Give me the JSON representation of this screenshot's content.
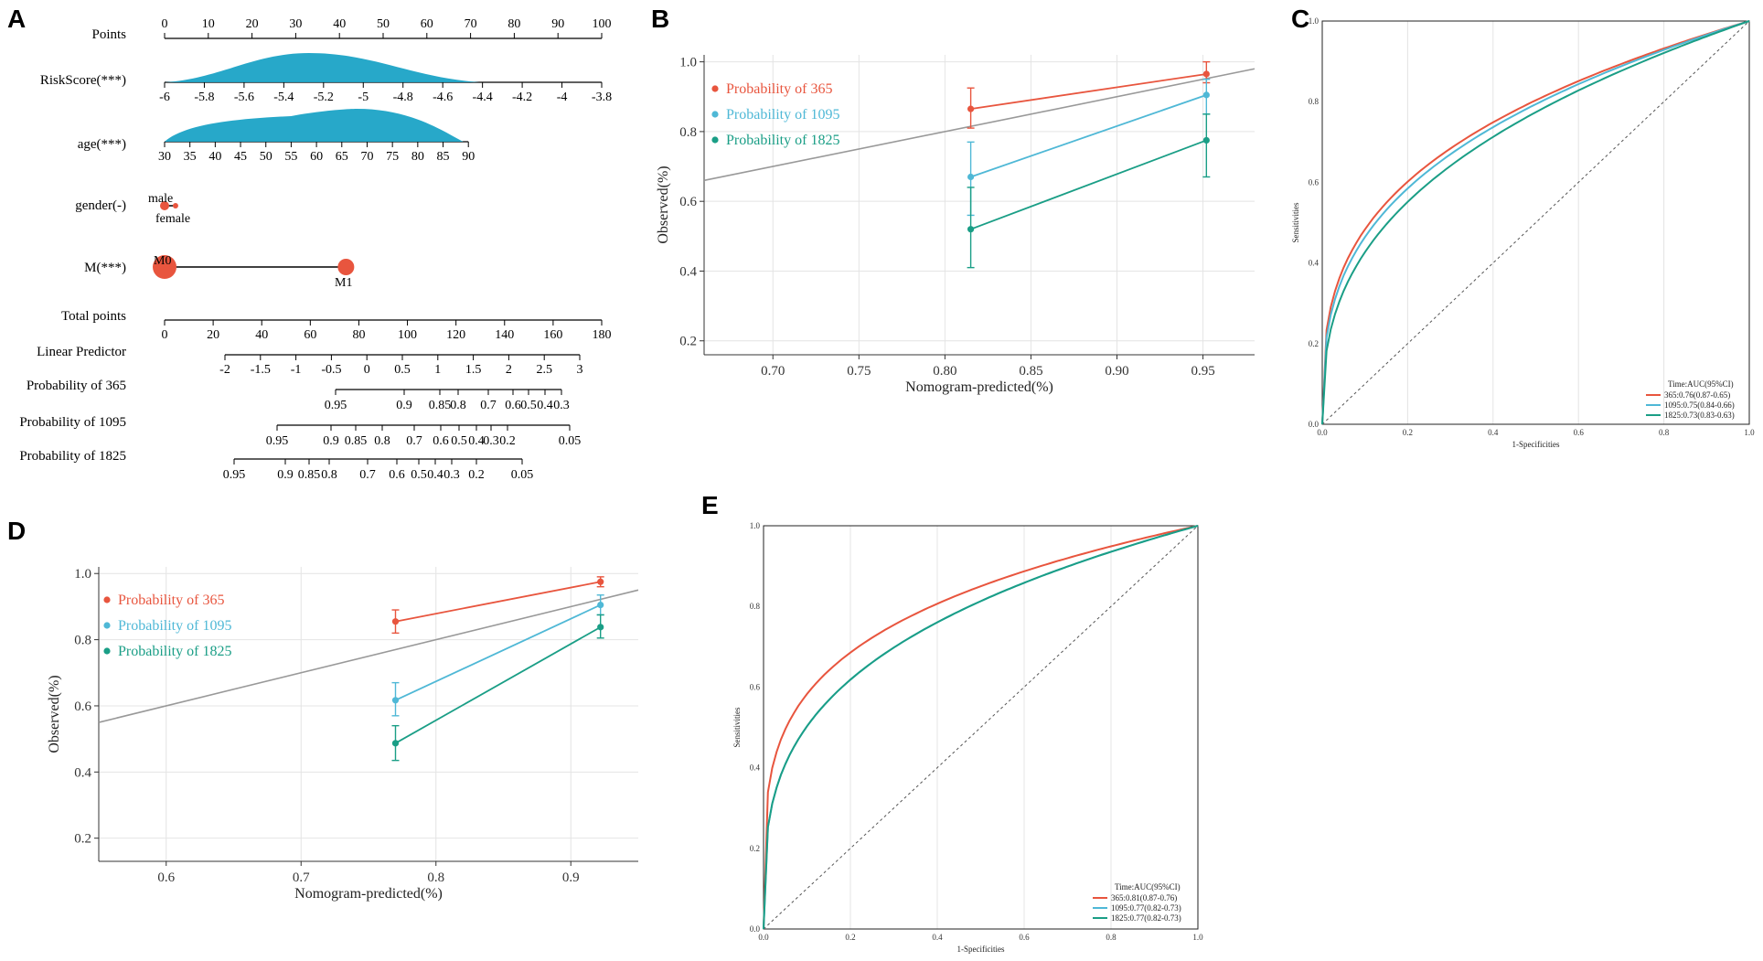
{
  "panels": {
    "A": "A",
    "B": "B",
    "C": "C",
    "D": "D",
    "E": "E"
  },
  "colors": {
    "c365": "#e8553e",
    "c1095": "#4fb8d6",
    "c1825": "#1a9e86",
    "diag": "#999999",
    "density": "#1ba3c6"
  },
  "chart_data": [
    {
      "panel": "A",
      "type": "nomogram",
      "rows": [
        {
          "label": "Points",
          "ticks": [
            0,
            10,
            20,
            30,
            40,
            50,
            60,
            70,
            80,
            90,
            100
          ],
          "labels": [
            "0",
            "10",
            "20",
            "30",
            "40",
            "50",
            "60",
            "70",
            "80",
            "90",
            "100"
          ]
        },
        {
          "label": "RiskScore(***)",
          "ticks": [
            -6,
            -5.8,
            -5.6,
            -5.4,
            -5.2,
            -5,
            -4.8,
            -4.6,
            -4.4,
            -4.2,
            -4,
            -3.8
          ],
          "labels": [
            "-6",
            "-5.8",
            "-5.6",
            "-5.4",
            "-5.2",
            "-5",
            "-4.8",
            "-4.6",
            "-4.4",
            "-4.2",
            "-4",
            "-3.8"
          ]
        },
        {
          "label": "age(***)",
          "ticks": [
            30,
            35,
            40,
            45,
            50,
            55,
            60,
            65,
            70,
            75,
            80,
            85,
            90
          ],
          "labels": [
            "30",
            "35",
            "40",
            "45",
            "50",
            "55",
            "60",
            "65",
            "70",
            "75",
            "80",
            "85",
            "90"
          ]
        },
        {
          "label": "gender(-)",
          "categories": [
            "male",
            "female"
          ]
        },
        {
          "label": "M(***)",
          "categories": [
            "M0",
            "M1"
          ]
        },
        {
          "label": "Total points",
          "ticks": [
            0,
            20,
            40,
            60,
            80,
            100,
            120,
            140,
            160,
            180
          ],
          "labels": [
            "0",
            "20",
            "40",
            "60",
            "80",
            "100",
            "120",
            "140",
            "160",
            "180"
          ]
        },
        {
          "label": "Linear Predictor",
          "ticks": [
            -2,
            -1.5,
            -1,
            -0.5,
            0,
            0.5,
            1,
            1.5,
            2,
            2.5,
            3
          ],
          "labels": [
            "-2",
            "-1.5",
            "-1",
            "-0.5",
            "0",
            "0.5",
            "1",
            "1.5",
            "2",
            "2.5",
            "3"
          ]
        },
        {
          "label": "Probability of 365",
          "ticks": [
            0.95,
            0.9,
            0.85,
            0.8,
            0.7,
            0.6,
            0.5,
            0.4,
            0.3
          ],
          "labels": [
            "0.95",
            "0.9",
            "0.85",
            "0.8",
            "0.7",
            "0.6",
            "0.5",
            "0.4",
            "0.3"
          ]
        },
        {
          "label": "Probability of 1095",
          "ticks": [
            0.95,
            0.9,
            0.85,
            0.8,
            0.7,
            0.6,
            0.5,
            0.4,
            0.3,
            0.2,
            0.05
          ],
          "labels": [
            "0.95",
            "0.9",
            "0.85",
            "0.8",
            "0.7",
            "0.6",
            "0.5",
            "0.4",
            "0.3",
            "0.2",
            "0.05"
          ]
        },
        {
          "label": "Probability of 1825",
          "ticks": [
            0.95,
            0.9,
            0.85,
            0.8,
            0.7,
            0.6,
            0.5,
            0.4,
            0.3,
            0.2,
            0.05
          ],
          "labels": [
            "0.95",
            "0.9",
            "0.85",
            "0.8",
            "0.7",
            "0.6",
            "0.5",
            "0.4",
            "0.3",
            "0.2",
            "0.05"
          ]
        }
      ]
    },
    {
      "panel": "B",
      "type": "calibration",
      "xlabel": "Nomogram-predicted(%)",
      "ylabel": "Observed(%)",
      "xlim": [
        0.66,
        0.98
      ],
      "ylim": [
        0.16,
        1.02
      ],
      "xticks": [
        0.7,
        0.75,
        0.8,
        0.85,
        0.9,
        0.95
      ],
      "xtick_labels": [
        "0.70",
        "0.75",
        "0.80",
        "0.85",
        "0.90",
        "0.95"
      ],
      "yticks": [
        0.2,
        0.4,
        0.6,
        0.8,
        1.0
      ],
      "ytick_labels": [
        "0.2",
        "0.4",
        "0.6",
        "0.8",
        "1.0"
      ],
      "series": [
        {
          "name": "Probability of 365",
          "x": [
            0.815,
            0.952
          ],
          "y": [
            0.865,
            0.965
          ],
          "lo": [
            0.81,
            0.94
          ],
          "hi": [
            0.925,
            1.0
          ]
        },
        {
          "name": "Probability of 1095",
          "x": [
            0.815,
            0.952
          ],
          "y": [
            0.67,
            0.905
          ],
          "lo": [
            0.56,
            0.85
          ],
          "hi": [
            0.77,
            0.95
          ]
        },
        {
          "name": "Probability of 1825",
          "x": [
            0.815,
            0.952
          ],
          "y": [
            0.52,
            0.775
          ],
          "lo": [
            0.41,
            0.67
          ],
          "hi": [
            0.64,
            0.85
          ]
        }
      ]
    },
    {
      "panel": "C",
      "type": "roc",
      "xlabel": "1-Specificities",
      "ylabel": "Sensitivities",
      "ticks": [
        "0.0",
        "0.2",
        "0.4",
        "0.6",
        "0.8",
        "1.0"
      ],
      "legend_title": "Time:AUC(95%CI)",
      "series": [
        {
          "name": "365:0.76(0.87-0.65)",
          "auc": 0.76
        },
        {
          "name": "1095:0.75(0.84-0.66)",
          "auc": 0.75
        },
        {
          "name": "1825:0.73(0.83-0.63)",
          "auc": 0.73
        }
      ]
    },
    {
      "panel": "D",
      "type": "calibration",
      "xlabel": "Nomogram-predicted(%)",
      "ylabel": "Observed(%)",
      "xlim": [
        0.55,
        0.95
      ],
      "ylim": [
        0.13,
        1.02
      ],
      "xticks": [
        0.6,
        0.7,
        0.8,
        0.9
      ],
      "xtick_labels": [
        "0.6",
        "0.7",
        "0.8",
        "0.9"
      ],
      "yticks": [
        0.2,
        0.4,
        0.6,
        0.8,
        1.0
      ],
      "ytick_labels": [
        "0.2",
        "0.4",
        "0.6",
        "0.8",
        "1.0"
      ],
      "series": [
        {
          "name": "Probability of 365",
          "x": [
            0.77,
            0.922
          ],
          "y": [
            0.855,
            0.975
          ],
          "lo": [
            0.82,
            0.96
          ],
          "hi": [
            0.89,
            0.99
          ]
        },
        {
          "name": "Probability of 1095",
          "x": [
            0.77,
            0.922
          ],
          "y": [
            0.617,
            0.905
          ],
          "lo": [
            0.57,
            0.875
          ],
          "hi": [
            0.67,
            0.935
          ]
        },
        {
          "name": "Probability of 1825",
          "x": [
            0.77,
            0.922
          ],
          "y": [
            0.487,
            0.838
          ],
          "lo": [
            0.435,
            0.805
          ],
          "hi": [
            0.54,
            0.875
          ]
        }
      ]
    },
    {
      "panel": "E",
      "type": "roc",
      "xlabel": "1-Specificities",
      "ylabel": "Sensitivities",
      "ticks": [
        "0.0",
        "0.2",
        "0.4",
        "0.6",
        "0.8",
        "1.0"
      ],
      "legend_title": "Time:AUC(95%CI)",
      "series": [
        {
          "name": "365:0.81(0.87-0.76)",
          "auc": 0.81
        },
        {
          "name": "1095:0.77(0.82-0.73)",
          "auc": 0.77
        },
        {
          "name": "1825:0.77(0.82-0.73)",
          "auc": 0.77
        }
      ]
    }
  ]
}
